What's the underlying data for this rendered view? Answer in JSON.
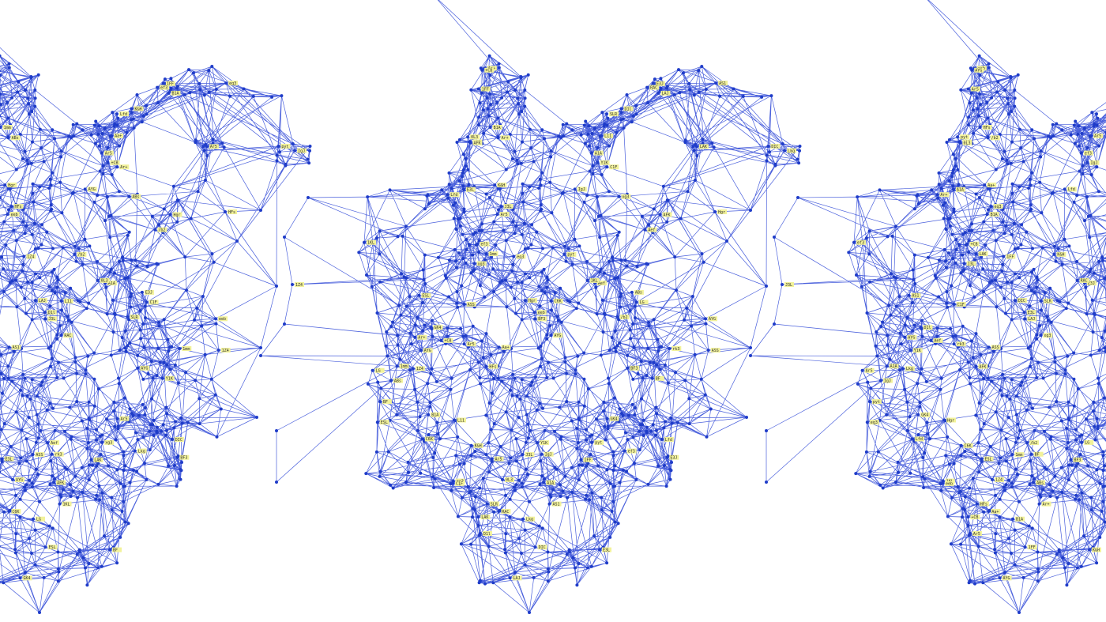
{
  "image": {
    "subject": "Lady Justice drawn as a network graph",
    "repeat_count": 3,
    "colors": {
      "background": "#ffffff",
      "edge": "#2a44d6",
      "node": "#1f3cc8",
      "label_bg": "#f2f29a",
      "label_text": "#333333"
    },
    "node_labels": [
      "ABs",
      "1mm",
      "Hgr",
      "1Z4",
      "eeb",
      "/b2",
      "AYG",
      "Ar5",
      "HFs",
      "Aa+",
      "Ar+",
      "+CB",
      "1FF",
      "B1A",
      "K&H",
      "Lfd",
      "ef3",
      "eq3",
      "Ar5",
      "pyt",
      "IgJ",
      "A1A",
      "J3L",
      "L11",
      "0L3",
      "C1F",
      "Y1K",
      "E3J",
      "LAJ",
      "D1l",
      "SLR",
      "RAC",
      "AS1",
      "LAK",
      "DIC",
      "Lkg",
      "E3L",
      "xg3",
      "rk3",
      "AFK",
      "ASS",
      "AYG",
      "Aef",
      "BF3",
      "GK4",
      "C6K",
      "1KL",
      "ESL",
      "LG",
      "BF"
    ]
  }
}
